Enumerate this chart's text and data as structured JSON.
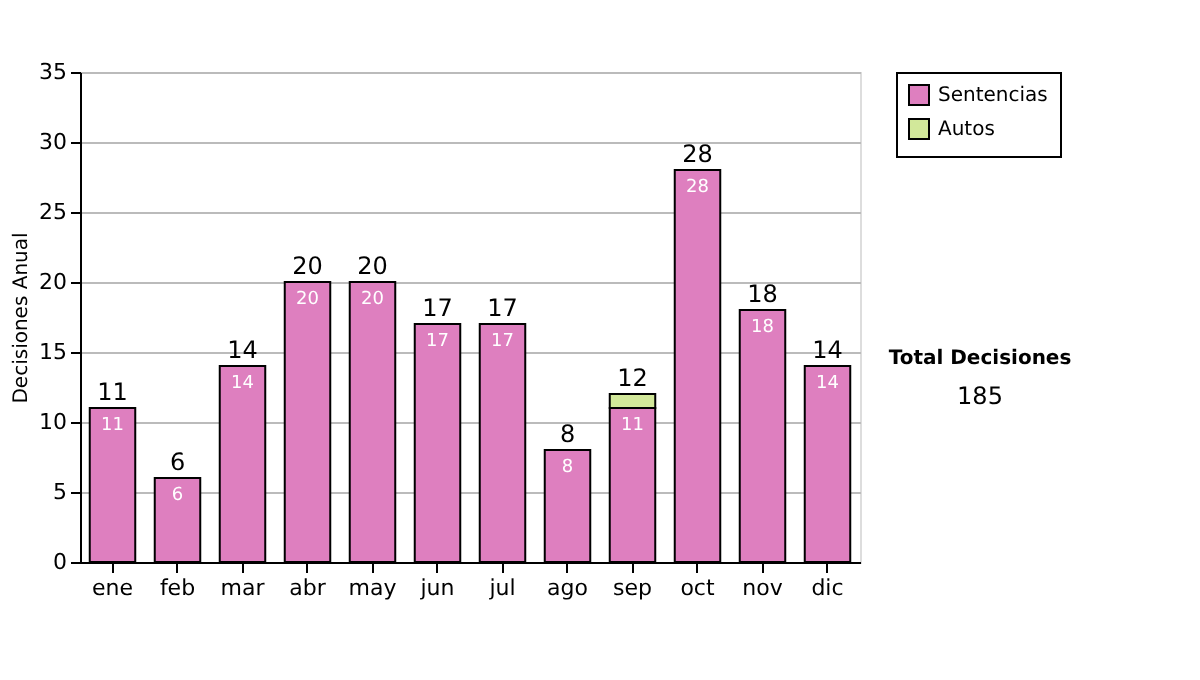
{
  "chart_data": {
    "type": "bar",
    "stacked": true,
    "ylabel": "Decisiones Anual",
    "categories": [
      "ene",
      "feb",
      "mar",
      "abr",
      "may",
      "jun",
      "jul",
      "ago",
      "sep",
      "oct",
      "nov",
      "dic"
    ],
    "series": [
      {
        "name": "Sentencias",
        "color": "#de7fbf",
        "values": [
          11,
          6,
          14,
          20,
          20,
          17,
          17,
          8,
          11,
          28,
          18,
          14
        ],
        "value_labels": [
          "11",
          "6",
          "14",
          "20",
          "20",
          "17",
          "17",
          "8",
          "11",
          "28",
          "18",
          "14"
        ]
      },
      {
        "name": "Autos",
        "color": "#d2e89a",
        "values": [
          0,
          0,
          0,
          0,
          0,
          0,
          0,
          0,
          1,
          0,
          0,
          0
        ],
        "value_labels": [
          null,
          null,
          null,
          null,
          null,
          null,
          null,
          null,
          null,
          null,
          null,
          null
        ]
      }
    ],
    "totals": [
      "11",
      "6",
      "14",
      "20",
      "20",
      "17",
      "17",
      "8",
      "12",
      "28",
      "18",
      "14"
    ],
    "ylim": [
      0,
      35
    ],
    "yticks": [
      0,
      5,
      10,
      15,
      20,
      25,
      30,
      35
    ],
    "grid": "y",
    "legend": "top right",
    "annotations": [
      "Total Decisiones",
      "185"
    ]
  }
}
